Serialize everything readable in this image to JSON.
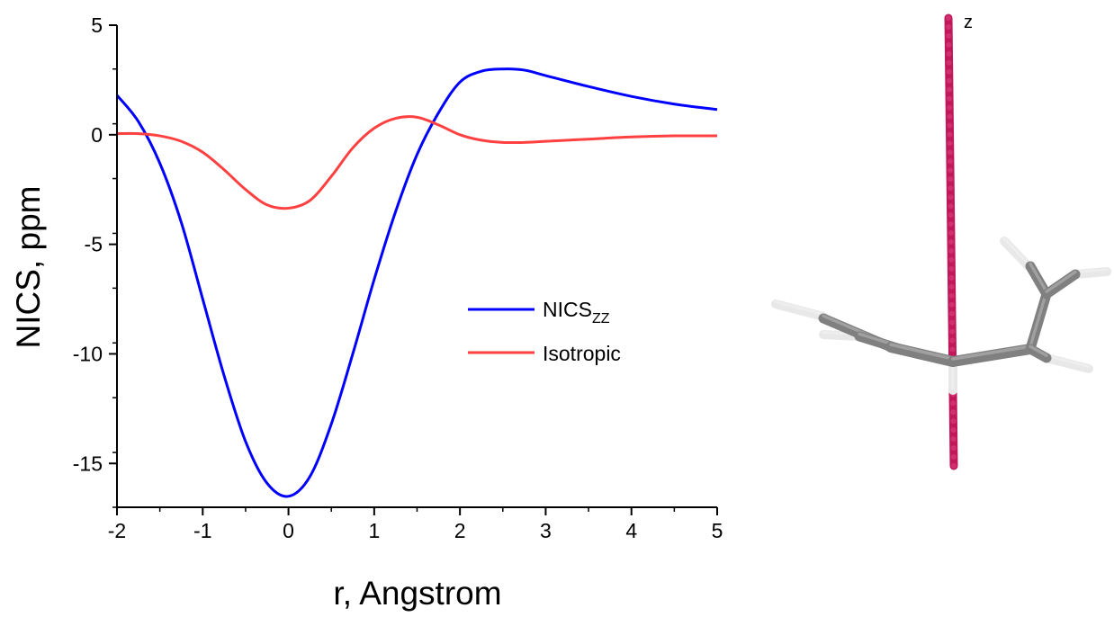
{
  "chart_data": {
    "type": "line",
    "xlabel": "r, Angstrom",
    "ylabel": "NICS, ppm",
    "xlim": [
      -2,
      5
    ],
    "ylim": [
      -17,
      5
    ],
    "x_ticks": [
      -2,
      -1,
      0,
      1,
      2,
      3,
      4,
      5
    ],
    "y_ticks": [
      5,
      0,
      -5,
      -10,
      -15
    ],
    "x_tick_labels": [
      "-2",
      "-1",
      "0",
      "1",
      "2",
      "3",
      "4",
      "5"
    ],
    "y_tick_labels": [
      "5",
      "0",
      "-5",
      "-10",
      "-15"
    ],
    "grid": false,
    "legend_position": "center-right",
    "series": [
      {
        "name": "NICSZZ",
        "label_main": "NICS",
        "label_sub": "ZZ",
        "color": "#0000ff",
        "x": [
          -2.0,
          -1.75,
          -1.5,
          -1.25,
          -1.0,
          -0.75,
          -0.5,
          -0.25,
          0.0,
          0.25,
          0.5,
          0.75,
          1.0,
          1.25,
          1.5,
          1.75,
          2.0,
          2.25,
          2.5,
          2.75,
          3.0,
          3.5,
          4.0,
          4.5,
          5.0
        ],
        "y": [
          1.8,
          0.6,
          -1.3,
          -4.0,
          -7.5,
          -11.0,
          -14.0,
          -15.9,
          -16.5,
          -15.6,
          -13.2,
          -10.0,
          -6.6,
          -3.5,
          -0.9,
          1.0,
          2.4,
          2.9,
          3.0,
          2.95,
          2.7,
          2.2,
          1.75,
          1.4,
          1.15
        ]
      },
      {
        "name": "Isotropic",
        "color": "#ff4040",
        "x": [
          -2.0,
          -1.75,
          -1.5,
          -1.25,
          -1.0,
          -0.75,
          -0.5,
          -0.25,
          0.0,
          0.25,
          0.5,
          0.75,
          1.0,
          1.25,
          1.5,
          1.75,
          2.0,
          2.25,
          2.5,
          2.75,
          3.0,
          3.5,
          4.0,
          4.5,
          5.0
        ],
        "y": [
          0.05,
          0.05,
          -0.05,
          -0.3,
          -0.8,
          -1.6,
          -2.5,
          -3.2,
          -3.35,
          -3.0,
          -1.9,
          -0.6,
          0.3,
          0.75,
          0.8,
          0.45,
          0.0,
          -0.25,
          -0.35,
          -0.35,
          -0.3,
          -0.2,
          -0.1,
          -0.05,
          -0.05
        ]
      }
    ]
  },
  "molecule": {
    "axis_label": "z",
    "probe_color": "#c0185a",
    "carbon_color": "#808080",
    "hydrogen_color": "#e8e8e8"
  }
}
